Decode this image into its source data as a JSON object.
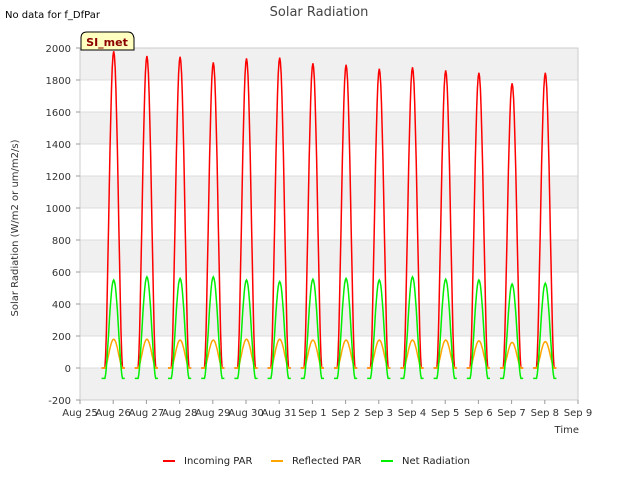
{
  "page": {
    "note": "No data for f_DfPar",
    "badge": "SI_met"
  },
  "chart_data": {
    "type": "line",
    "title": "Solar Radiation",
    "xlabel": "Time",
    "ylabel": "Solar Radiation (W/m2 or um/m2/s)",
    "ylim": [
      -200,
      2000
    ],
    "yticks": [
      -200,
      0,
      200,
      400,
      600,
      800,
      1000,
      1200,
      1400,
      1600,
      1800,
      2000
    ],
    "xlim": [
      0,
      15
    ],
    "xticks": [
      "Aug 25",
      "Aug 26",
      "Aug 27",
      "Aug 28",
      "Aug 29",
      "Aug 30",
      "Aug 31",
      "Sep 1",
      "Sep 2",
      "Sep 3",
      "Sep 4",
      "Sep 5",
      "Sep 6",
      "Sep 7",
      "Sep 8",
      "Sep 9"
    ],
    "grid": true,
    "legend_position": "bottom",
    "series": [
      {
        "name": "Incoming PAR",
        "color": "#ff0000",
        "daily_peaks": [
          1980,
          1950,
          1945,
          1910,
          1935,
          1940,
          1905,
          1895,
          1870,
          1880,
          1860,
          1845,
          1780,
          1845
        ],
        "night_value": 0
      },
      {
        "name": "Reflected PAR",
        "color": "#ffa500",
        "daily_peaks": [
          180,
          180,
          175,
          175,
          180,
          180,
          175,
          175,
          175,
          175,
          175,
          170,
          160,
          165
        ],
        "night_value": 0
      },
      {
        "name": "Net Radiation",
        "color": "#00ee00",
        "daily_peaks": [
          550,
          570,
          560,
          570,
          550,
          540,
          555,
          560,
          550,
          570,
          555,
          550,
          525,
          530
        ],
        "night_value": -65
      }
    ]
  }
}
